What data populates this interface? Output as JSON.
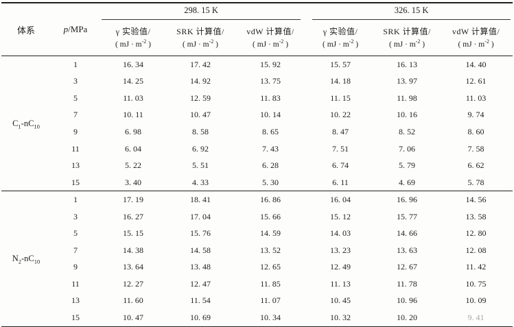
{
  "colors": {
    "background": "#fdfdfc",
    "text": "#1d1d1d",
    "rule": "#1f1f1f"
  },
  "table": {
    "system_header": "体系",
    "pressure_header": {
      "symbol": "p",
      "unit": "/MPa"
    },
    "temp_groups": [
      "298. 15 K",
      "326. 15 K"
    ],
    "value_columns": [
      "γ 实验值/",
      "SRK 计算值/",
      "vdW 计算值/"
    ],
    "unit_line": {
      "pre": "( mJ · m",
      "sup": "-2",
      "post": " )"
    },
    "sections": [
      {
        "system": {
          "el1": "C",
          "sub1": "1",
          "el2": "-nC",
          "sub2": "10"
        },
        "rows": [
          {
            "p": "1",
            "values": [
              "16. 34",
              "17. 42",
              "15. 92",
              "15. 57",
              "16. 13",
              "14. 40"
            ]
          },
          {
            "p": "3",
            "values": [
              "14. 25",
              "14. 92",
              "13. 75",
              "14. 18",
              "13. 97",
              "12. 61"
            ]
          },
          {
            "p": "5",
            "values": [
              "11. 03",
              "12. 59",
              "11. 83",
              "11. 15",
              "11. 98",
              "11. 03"
            ]
          },
          {
            "p": "7",
            "values": [
              "10. 11",
              "10. 47",
              "10. 14",
              "10. 22",
              "10. 16",
              "9. 74"
            ]
          },
          {
            "p": "9",
            "values": [
              "6. 98",
              "8. 58",
              "8. 65",
              "8. 47",
              "8. 52",
              "8. 60"
            ]
          },
          {
            "p": "11",
            "values": [
              "6. 04",
              "6. 92",
              "7. 43",
              "7. 51",
              "7. 06",
              "7. 58"
            ]
          },
          {
            "p": "13",
            "values": [
              "5. 22",
              "5. 51",
              "6. 28",
              "6. 74",
              "5. 79",
              "6. 62"
            ]
          },
          {
            "p": "15",
            "values": [
              "3. 40",
              "4. 33",
              "5. 30",
              "6. 11",
              "4. 69",
              "5. 78"
            ]
          }
        ]
      },
      {
        "system": {
          "el1": "N",
          "sub1": "2",
          "el2": "-nC",
          "sub2": "10"
        },
        "rows": [
          {
            "p": "1",
            "values": [
              "17. 19",
              "18. 41",
              "16. 86",
              "16. 04",
              "16. 96",
              "14. 56"
            ]
          },
          {
            "p": "3",
            "values": [
              "16. 27",
              "17. 04",
              "15. 66",
              "15. 12",
              "15. 77",
              "13. 58"
            ]
          },
          {
            "p": "5",
            "values": [
              "15. 15",
              "15. 76",
              "14. 59",
              "14. 03",
              "14. 66",
              "12. 80"
            ]
          },
          {
            "p": "7",
            "values": [
              "14. 38",
              "14. 58",
              "13. 52",
              "13. 23",
              "13. 63",
              "12. 08"
            ]
          },
          {
            "p": "9",
            "values": [
              "13. 64",
              "13. 48",
              "12. 65",
              "12. 49",
              "12. 67",
              "11. 42"
            ]
          },
          {
            "p": "11",
            "values": [
              "12. 27",
              "12. 47",
              "11. 85",
              "11. 13",
              "11. 78",
              "10. 75"
            ]
          },
          {
            "p": "13",
            "values": [
              "11. 60",
              "11. 54",
              "11. 07",
              "10. 45",
              "10. 96",
              "10. 09"
            ]
          },
          {
            "p": "15",
            "values": [
              "10. 47",
              "10. 69",
              "10. 34",
              "10. 32",
              "10. 20",
              "9. 41"
            ]
          }
        ]
      }
    ]
  }
}
